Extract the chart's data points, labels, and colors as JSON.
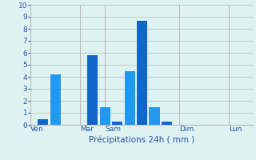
{
  "bars": [
    {
      "x": 1,
      "height": 0.5,
      "color": "#1166cc"
    },
    {
      "x": 2,
      "height": 4.2,
      "color": "#2299ee"
    },
    {
      "x": 5,
      "height": 5.8,
      "color": "#1166cc"
    },
    {
      "x": 6,
      "height": 1.5,
      "color": "#2299ee"
    },
    {
      "x": 7,
      "height": 0.3,
      "color": "#1166cc"
    },
    {
      "x": 8,
      "height": 4.5,
      "color": "#2299ee"
    },
    {
      "x": 9,
      "height": 8.7,
      "color": "#1166cc"
    },
    {
      "x": 10,
      "height": 1.5,
      "color": "#2299ee"
    },
    {
      "x": 11,
      "height": 0.3,
      "color": "#1166cc"
    }
  ],
  "day_labels": [
    {
      "x": 0,
      "label": "Ven"
    },
    {
      "x": 4,
      "label": "Mar"
    },
    {
      "x": 6,
      "label": "Sam"
    },
    {
      "x": 12,
      "label": "Dim"
    },
    {
      "x": 16,
      "label": "Lun"
    }
  ],
  "day_lines_x": [
    0,
    4,
    6,
    12,
    16
  ],
  "xlabel": "Précipitations 24h ( mm )",
  "ylim": [
    0,
    10
  ],
  "yticks": [
    0,
    1,
    2,
    3,
    4,
    5,
    6,
    7,
    8,
    9,
    10
  ],
  "bar_width": 0.85,
  "background_color": "#dff2f2",
  "grid_color": "#bbbbbb",
  "xlabel_color": "#2255aa",
  "tick_color": "#2255aa",
  "xlim": [
    0,
    18
  ],
  "figsize": [
    3.2,
    2.0
  ],
  "dpi": 100
}
